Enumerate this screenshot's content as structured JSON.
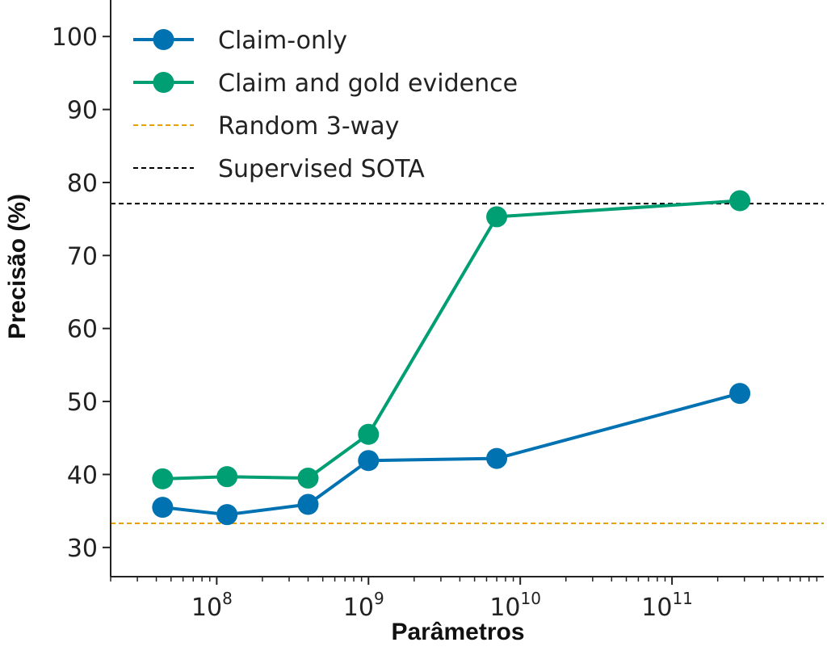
{
  "chart_data": {
    "type": "line",
    "title": "",
    "xlabel": "Parâmetros",
    "ylabel": "Precisão (%)",
    "x_scale": "log",
    "xlim": [
      20000000,
      1000000000000
    ],
    "ylim": [
      26,
      105
    ],
    "y_ticks": [
      30,
      40,
      50,
      60,
      70,
      80,
      90,
      100
    ],
    "x_ticks": [
      {
        "value": 100000000,
        "base": "10",
        "exp": "8"
      },
      {
        "value": 1000000000,
        "base": "10",
        "exp": "9"
      },
      {
        "value": 10000000000,
        "base": "10",
        "exp": "10"
      },
      {
        "value": 100000000000,
        "base": "10",
        "exp": "11"
      }
    ],
    "grid": false,
    "legend_position": "top-left",
    "series": [
      {
        "name": "Claim-only",
        "color": "#0072b2",
        "x": [
          44000000,
          117000000,
          400000000,
          1000000000,
          7000000000,
          280000000000
        ],
        "y": [
          35.5,
          34.5,
          35.9,
          41.9,
          42.2,
          51.1
        ]
      },
      {
        "name": "Claim and gold evidence",
        "color": "#009e73",
        "x": [
          44000000,
          117000000,
          400000000,
          1000000000,
          7000000000,
          280000000000
        ],
        "y": [
          39.4,
          39.7,
          39.5,
          45.5,
          75.3,
          77.5
        ]
      }
    ],
    "reference_lines": [
      {
        "name": "Random 3-way",
        "y": 33.3,
        "color": "#e69f00"
      },
      {
        "name": "Supervised SOTA",
        "y": 77.1,
        "color": "#000000"
      }
    ]
  }
}
